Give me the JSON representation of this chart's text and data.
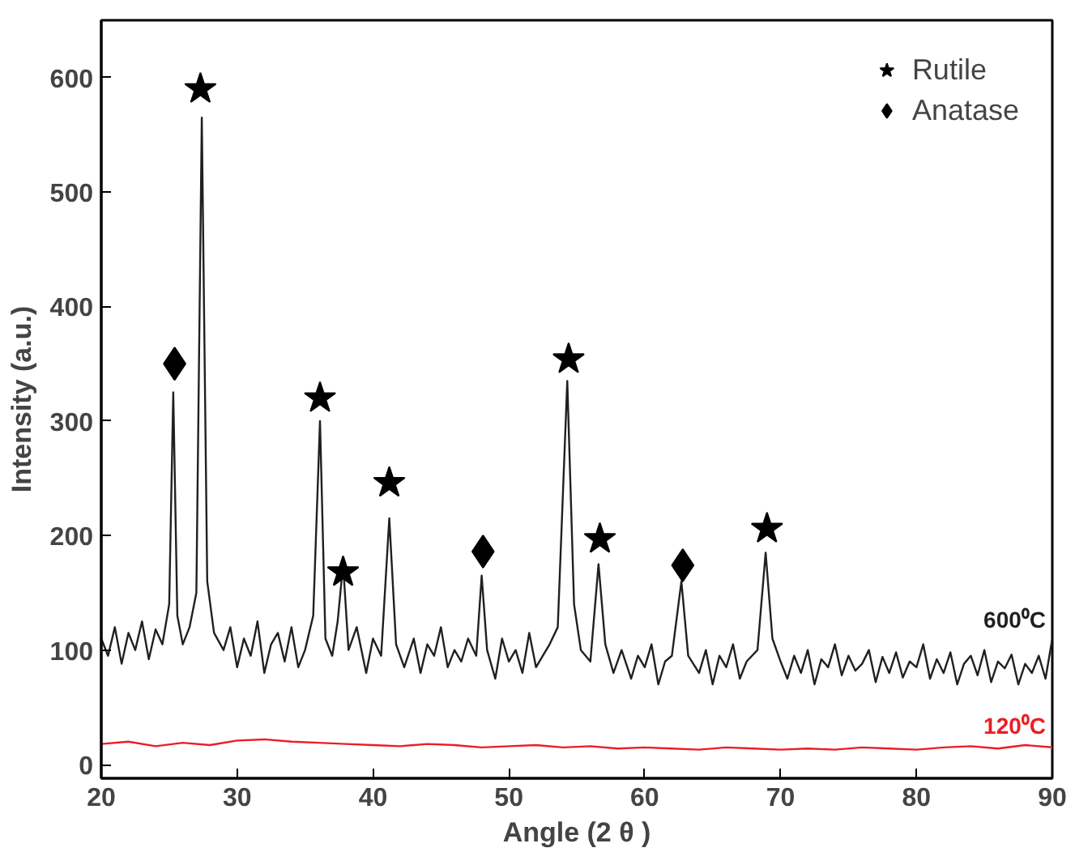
{
  "chart_data": {
    "type": "line",
    "xlabel": "Angle (2 θ )",
    "ylabel": "Intensity (a.u.)",
    "xlim": [
      20,
      90
    ],
    "ylim": [
      -12,
      650
    ],
    "xticks": [
      20,
      30,
      40,
      50,
      60,
      70,
      80,
      90
    ],
    "yticks": [
      0,
      100,
      200,
      300,
      400,
      500,
      600
    ],
    "grid": false,
    "legend": "top right",
    "series": [
      {
        "name": "600⁰C",
        "color": "#231f20",
        "x": [
          20,
          20.5,
          21,
          21.5,
          22,
          22.5,
          23,
          23.5,
          24,
          24.5,
          25.0,
          25.3,
          25.6,
          26,
          26.5,
          27.0,
          27.4,
          27.8,
          28.3,
          29,
          29.5,
          30,
          30.5,
          31,
          31.5,
          32,
          32.5,
          33,
          33.5,
          34,
          34.5,
          35,
          35.6,
          36.1,
          36.5,
          37,
          37.4,
          37.8,
          38.2,
          38.8,
          39.5,
          40,
          40.6,
          41.2,
          41.7,
          42.3,
          43,
          43.5,
          44,
          44.5,
          45,
          45.5,
          46,
          46.5,
          47,
          47.6,
          48.0,
          48.4,
          49,
          49.5,
          50,
          50.5,
          51,
          51.5,
          52,
          52.5,
          53,
          53.6,
          54.3,
          54.8,
          55.3,
          56,
          56.6,
          57.1,
          57.7,
          58.3,
          59,
          59.5,
          60,
          60.5,
          61,
          61.5,
          62,
          62.7,
          63.2,
          64,
          64.5,
          65,
          65.5,
          66,
          66.5,
          67,
          67.5,
          68.3,
          68.9,
          69.4,
          70,
          70.5,
          71,
          71.5,
          72,
          72.5,
          73,
          73.5,
          74,
          74.5,
          75,
          75.5,
          76,
          76.5,
          77,
          77.5,
          78,
          78.5,
          79,
          79.5,
          80,
          80.5,
          81,
          81.5,
          82,
          82.5,
          83,
          83.5,
          84,
          84.5,
          85,
          85.5,
          86,
          86.5,
          87,
          87.5,
          88,
          88.5,
          89,
          89.5,
          90
        ],
        "values": [
          110,
          95,
          120,
          88,
          115,
          100,
          125,
          92,
          118,
          105,
          140,
          325,
          130,
          105,
          120,
          150,
          565,
          160,
          115,
          100,
          120,
          85,
          110,
          95,
          125,
          80,
          105,
          115,
          90,
          120,
          85,
          100,
          130,
          300,
          110,
          95,
          125,
          175,
          100,
          120,
          80,
          110,
          95,
          215,
          105,
          85,
          110,
          80,
          105,
          95,
          120,
          85,
          100,
          90,
          110,
          95,
          165,
          100,
          75,
          110,
          90,
          100,
          80,
          115,
          85,
          95,
          105,
          120,
          335,
          140,
          100,
          90,
          175,
          105,
          80,
          100,
          75,
          95,
          85,
          105,
          70,
          90,
          95,
          160,
          95,
          80,
          100,
          70,
          95,
          85,
          105,
          75,
          90,
          100,
          185,
          110,
          90,
          75,
          95,
          80,
          100,
          70,
          92,
          85,
          105,
          78,
          95,
          82,
          88,
          100,
          72,
          94,
          80,
          98,
          76,
          90,
          85,
          105,
          75,
          92,
          80,
          98,
          70,
          88,
          95,
          78,
          100,
          72,
          90,
          84,
          96,
          70,
          88,
          80,
          95,
          75,
          110
        ]
      },
      {
        "name": "120⁰C",
        "color": "#ed1c24",
        "x": [
          20,
          22,
          24,
          26,
          28,
          30,
          32,
          34,
          36,
          38,
          40,
          42,
          44,
          46,
          48,
          50,
          52,
          54,
          56,
          58,
          60,
          62,
          64,
          66,
          68,
          70,
          72,
          74,
          76,
          78,
          80,
          82,
          84,
          86,
          88,
          90
        ],
        "values": [
          18,
          20,
          16,
          19,
          17,
          21,
          22,
          20,
          19,
          18,
          17,
          16,
          18,
          17,
          15,
          16,
          17,
          15,
          16,
          14,
          15,
          14,
          13,
          15,
          14,
          13,
          14,
          13,
          15,
          14,
          13,
          15,
          16,
          14,
          17,
          15
        ]
      },
      {
        "name": "Rutile",
        "type": "scatter",
        "marker": "star",
        "color": "#000000",
        "x": [
          27.3,
          36.1,
          37.8,
          41.2,
          54.4,
          56.7,
          69.0
        ],
        "values": [
          590,
          320,
          168,
          246,
          354,
          197,
          206
        ]
      },
      {
        "name": "Anatase",
        "type": "scatter",
        "marker": "diamond",
        "color": "#000000",
        "x": [
          25.4,
          48.1,
          62.8
        ],
        "values": [
          350,
          186,
          174
        ]
      }
    ]
  }
}
